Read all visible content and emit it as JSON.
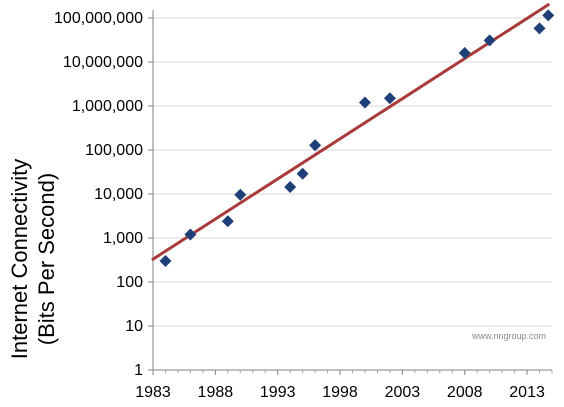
{
  "chart_data": {
    "type": "scatter",
    "title": "",
    "ylabel_line1": "Internet Connectivity",
    "ylabel_line2": "(Bits Per Second)",
    "xlabel": "",
    "yscale": "log",
    "ylim": [
      1,
      100000000
    ],
    "xlim": [
      1983,
      2015
    ],
    "x_ticks": [
      1983,
      1988,
      1993,
      1998,
      2003,
      2008,
      2013
    ],
    "x_tick_labels": [
      "1983",
      "1988",
      "1993",
      "1998",
      "2003",
      "2008",
      "2013"
    ],
    "y_ticks": [
      1,
      10,
      100,
      1000,
      10000,
      100000,
      1000000,
      10000000,
      100000000
    ],
    "y_tick_labels": [
      "1",
      "10",
      "100",
      "1,000",
      "10,000",
      "100,000",
      "1,000,000",
      "10,000,000",
      "100,000,000"
    ],
    "grid": true,
    "series": [
      {
        "marker": "diamond",
        "color": "#1f3f78",
        "points": [
          {
            "x": 1984,
            "y": 300
          },
          {
            "x": 1986,
            "y": 1200
          },
          {
            "x": 1989,
            "y": 2400
          },
          {
            "x": 1990,
            "y": 9600
          },
          {
            "x": 1994,
            "y": 14400
          },
          {
            "x": 1995,
            "y": 28800
          },
          {
            "x": 1996,
            "y": 128000
          },
          {
            "x": 2000,
            "y": 1200000
          },
          {
            "x": 2002,
            "y": 1500000
          },
          {
            "x": 2008,
            "y": 16000000
          },
          {
            "x": 2010,
            "y": 31000000
          },
          {
            "x": 2014,
            "y": 58000000
          },
          {
            "x": 2014.7,
            "y": 115000000
          }
        ]
      }
    ],
    "trendline": {
      "color": "#a83a3a",
      "x": [
        1983,
        2014.7
      ],
      "y": [
        330,
        200000000
      ]
    },
    "watermark": "www.nngroup.com"
  }
}
